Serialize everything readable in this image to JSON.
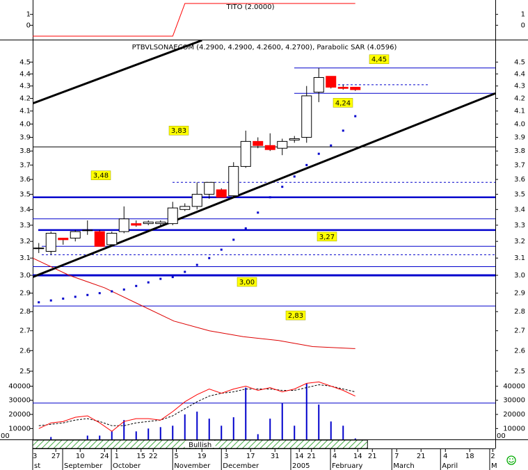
{
  "chart_data": [
    {
      "type": "candlestick",
      "title": "PTBVLSONAECOM (4.2900, 4.2900, 4.2600, 4.2700), Parabolic SAR (4.0596)",
      "log": true,
      "xlim": [
        -0.5,
        37.5
      ],
      "ylim": [
        2.48,
        4.69
      ],
      "yticks": [
        2.5,
        2.6,
        2.7,
        2.8,
        2.9,
        {
          "value": 3,
          "label": "3.0"
        },
        3.1,
        3.2,
        3.3,
        3.4,
        3.5,
        3.6,
        3.7,
        3.8,
        3.9,
        {
          "value": 4,
          "label": "4.0"
        },
        4.1,
        4.2,
        4.3,
        4.4,
        4.5
      ],
      "x": [
        0,
        1,
        2,
        3,
        4,
        5,
        6,
        7,
        8,
        9,
        10,
        11,
        12,
        13,
        14,
        15,
        16,
        17,
        18,
        19,
        20,
        21,
        22,
        23,
        24,
        25,
        26
      ],
      "open": [
        3.16,
        3.14,
        3.22,
        3.22,
        3.27,
        3.26,
        3.18,
        3.26,
        3.31,
        3.31,
        3.31,
        3.31,
        3.4,
        3.42,
        3.5,
        3.53,
        3.49,
        3.69,
        3.87,
        3.84,
        3.82,
        3.88,
        3.9,
        4.25,
        4.38,
        4.29,
        4.29
      ],
      "high": [
        3.19,
        3.26,
        3.22,
        3.27,
        3.33,
        3.27,
        3.26,
        3.42,
        3.33,
        3.33,
        3.33,
        3.45,
        3.44,
        3.58,
        3.58,
        3.54,
        3.72,
        3.95,
        3.9,
        3.93,
        3.89,
        3.91,
        4.3,
        4.45,
        4.38,
        4.31,
        4.29
      ],
      "low": [
        3.13,
        3.12,
        3.18,
        3.2,
        3.24,
        3.17,
        3.17,
        3.25,
        3.29,
        3.3,
        3.29,
        3.3,
        3.39,
        3.4,
        3.47,
        3.48,
        3.48,
        3.68,
        3.82,
        3.8,
        3.77,
        3.86,
        3.86,
        4.17,
        4.28,
        4.27,
        4.26
      ],
      "close": [
        3.16,
        3.25,
        3.21,
        3.26,
        3.27,
        3.17,
        3.25,
        3.34,
        3.3,
        3.32,
        3.32,
        3.41,
        3.42,
        3.5,
        3.58,
        3.48,
        3.69,
        3.87,
        3.84,
        3.81,
        3.87,
        3.89,
        4.22,
        4.37,
        4.29,
        4.28,
        4.27
      ],
      "up_color": "#ffffff",
      "down_color": "#ff0000",
      "sar": {
        "color": "#0000cc",
        "values": [
          2.85,
          2.86,
          2.87,
          2.88,
          2.89,
          2.9,
          2.91,
          2.92,
          2.94,
          2.96,
          2.98,
          2.99,
          3.02,
          3.06,
          3.1,
          3.15,
          3.21,
          3.28,
          3.38,
          3.48,
          3.55,
          3.62,
          3.7,
          3.78,
          3.84,
          3.95,
          4.06
        ]
      },
      "ma": {
        "color": "#dd0000",
        "x": [
          -0.5,
          2.5,
          5.4,
          8.2,
          11.1,
          14,
          16.8,
          19.7,
          22.5,
          26
        ],
        "values": [
          3.1,
          3.0,
          2.93,
          2.84,
          2.75,
          2.7,
          2.67,
          2.65,
          2.62,
          2.61
        ]
      },
      "levels": {
        "values": [
          4.45,
          4.24,
          3.83,
          3.48,
          3.27,
          3.0,
          2.83
        ],
        "value_labels": [
          "4,45",
          "4,24",
          "3,83",
          "3,48",
          "3,27",
          "3,00",
          "2,83"
        ]
      },
      "extra_levels": [
        3.34,
        3.17,
        3.05
      ],
      "dashed_levels": [
        4.31,
        3.58,
        3.12
      ],
      "trendlines": [
        {
          "x": [
            -0.5,
            13.4
          ],
          "values": [
            4.16,
            4.69
          ]
        },
        {
          "x": [
            -0.5,
            37.5
          ],
          "values": [
            2.99,
            4.24
          ]
        }
      ]
    },
    {
      "type": "line",
      "title": "TITO (2.0000)",
      "xlim": [
        -0.5,
        37.5
      ],
      "ylim": [
        -1.32,
        2.32
      ],
      "yticks": [
        1,
        0
      ],
      "x": [
        -0.5,
        11,
        12,
        26
      ],
      "values": [
        -1,
        -1,
        2,
        2
      ],
      "color": "#ff0000"
    },
    {
      "type": "bar",
      "xlim": [
        -0.5,
        37.5
      ],
      "ylim": [
        2300,
        47600
      ],
      "yticks": [
        10000,
        20000,
        30000,
        40000
      ],
      "cut_tick_label": "00",
      "x": [
        0,
        1,
        2,
        3,
        4,
        5,
        6,
        7,
        8,
        9,
        10,
        11,
        12,
        13,
        14,
        15,
        16,
        17,
        18,
        19,
        20,
        21,
        22,
        23,
        24,
        25,
        26
      ],
      "values": [
        1000,
        4000,
        1000,
        2000,
        5000,
        5000,
        8000,
        16000,
        8000,
        10000,
        11000,
        12000,
        20000,
        22000,
        17000,
        12000,
        18000,
        39000,
        6000,
        17000,
        28000,
        12000,
        42000,
        27000,
        15000,
        12000,
        3000
      ],
      "color": "#0000cc",
      "ma": {
        "color": "#ff0000",
        "values": [
          10000,
          14000,
          15000,
          18000,
          19000,
          14000,
          8000,
          15000,
          17000,
          17000,
          16000,
          22000,
          29000,
          34000,
          38000,
          35000,
          38000,
          40000,
          37000,
          39000,
          36000,
          38000,
          42000,
          43000,
          40000,
          37000,
          33000
        ]
      },
      "ma2": {
        "color": "#000000",
        "values": [
          12000,
          13000,
          14000,
          16000,
          17000,
          15000,
          12000,
          12000,
          14000,
          15000,
          16000,
          19000,
          24000,
          29000,
          33000,
          35000,
          36000,
          38000,
          38000,
          38000,
          37000,
          37000,
          39000,
          41000,
          40000,
          38000,
          36000
        ]
      },
      "level": 28000,
      "band_label": "Bullish",
      "band_x": [
        -0.5,
        27
      ],
      "xticks": [
        {
          "value": -0.5,
          "label": "3"
        },
        {
          "value": 1.4,
          "label": "27"
        },
        {
          "value": 3.4,
          "label": "10"
        },
        {
          "value": 5.4,
          "label": "24"
        },
        {
          "value": 6.4,
          "label": "1"
        },
        {
          "value": 8.4,
          "label": "15"
        },
        {
          "value": 9.4,
          "label": "22"
        },
        {
          "value": 11.3,
          "label": "5"
        },
        {
          "value": 13.4,
          "label": "19"
        },
        {
          "value": 15.4,
          "label": "3"
        },
        {
          "value": 17.4,
          "label": "17"
        },
        {
          "value": 19.4,
          "label": "31"
        },
        {
          "value": 21.4,
          "label": "14"
        },
        {
          "value": 22.4,
          "label": "21"
        },
        {
          "value": 24.3,
          "label": "4"
        },
        {
          "value": 26.2,
          "label": "14"
        },
        {
          "value": 27.4,
          "label": "21"
        },
        {
          "value": 29.4,
          "label": "7"
        },
        {
          "value": 31.4,
          "label": "21"
        },
        {
          "value": 33.4,
          "label": "4"
        },
        {
          "value": 35.4,
          "label": "18"
        },
        {
          "value": 37.3,
          "label": "2"
        }
      ],
      "month_ticks": [
        {
          "value": -0.5,
          "label": "st"
        },
        {
          "value": 1.96,
          "label": "September"
        },
        {
          "value": 5.96,
          "label": "October"
        },
        {
          "value": 11,
          "label": "November"
        },
        {
          "value": 15,
          "label": "December"
        },
        {
          "value": 20.7,
          "label": "2005"
        },
        {
          "value": 23.96,
          "label": "February"
        },
        {
          "value": 29,
          "label": "March"
        },
        {
          "value": 33,
          "label": "April"
        },
        {
          "value": 37.04,
          "label": "M"
        }
      ]
    }
  ]
}
